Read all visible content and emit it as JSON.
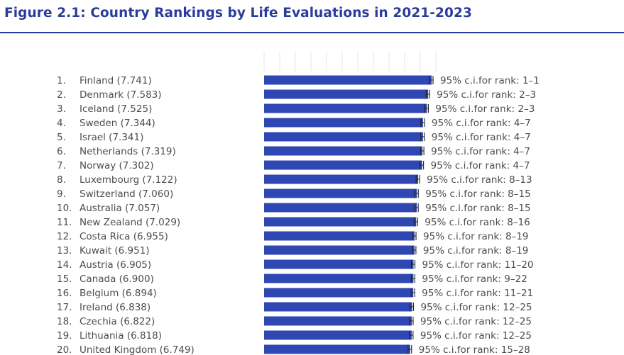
{
  "title": "Figure 2.1: Country Rankings by Life Evaluations in 2021-2023",
  "colors": {
    "title": "#2a3b9c",
    "rule": "#2a3b9c",
    "bar": "#2f47b3",
    "text": "#4d4d4d",
    "errorbar": "#222222",
    "gridline": "#e4e4e4"
  },
  "chart_data": {
    "type": "bar",
    "orientation": "horizontal",
    "title": "Figure 2.1: Country Rankings by Life Evaluations in 2021-2023",
    "xlabel": "",
    "ylabel": "",
    "xlim": [
      0,
      8
    ],
    "ci_prefix": "95% c.i.for rank: ",
    "rows": [
      {
        "rank": "1.",
        "country": "Finland",
        "score": 7.741,
        "label": "Finland (7.741)",
        "ci": "1–1"
      },
      {
        "rank": "2.",
        "country": "Denmark",
        "score": 7.583,
        "label": "Denmark (7.583)",
        "ci": "2–3"
      },
      {
        "rank": "3.",
        "country": "Iceland",
        "score": 7.525,
        "label": "Iceland (7.525)",
        "ci": "2–3"
      },
      {
        "rank": "4.",
        "country": "Sweden",
        "score": 7.344,
        "label": "Sweden (7.344)",
        "ci": "4–7"
      },
      {
        "rank": "5.",
        "country": "Israel",
        "score": 7.341,
        "label": "Israel (7.341)",
        "ci": "4–7"
      },
      {
        "rank": "6.",
        "country": "Netherlands",
        "score": 7.319,
        "label": "Netherlands (7.319)",
        "ci": "4–7"
      },
      {
        "rank": "7.",
        "country": "Norway",
        "score": 7.302,
        "label": "Norway (7.302)",
        "ci": "4–7"
      },
      {
        "rank": "8.",
        "country": "Luxembourg",
        "score": 7.122,
        "label": "Luxembourg (7.122)",
        "ci": "8–13"
      },
      {
        "rank": "9.",
        "country": "Switzerland",
        "score": 7.06,
        "label": "Switzerland (7.060)",
        "ci": "8–15"
      },
      {
        "rank": "10.",
        "country": "Australia",
        "score": 7.057,
        "label": "Australia (7.057)",
        "ci": "8–15"
      },
      {
        "rank": "11.",
        "country": "New Zealand",
        "score": 7.029,
        "label": "New Zealand (7.029)",
        "ci": "8–16"
      },
      {
        "rank": "12.",
        "country": "Costa Rica",
        "score": 6.955,
        "label": "Costa Rica (6.955)",
        "ci": "8–19"
      },
      {
        "rank": "13.",
        "country": "Kuwait",
        "score": 6.951,
        "label": "Kuwait (6.951)",
        "ci": "8–19"
      },
      {
        "rank": "14.",
        "country": "Austria",
        "score": 6.905,
        "label": "Austria (6.905)",
        "ci": "11–20"
      },
      {
        "rank": "15.",
        "country": "Canada",
        "score": 6.9,
        "label": "Canada (6.900)",
        "ci": "9–22"
      },
      {
        "rank": "16.",
        "country": "Belgium",
        "score": 6.894,
        "label": "Belgium (6.894)",
        "ci": "11–21"
      },
      {
        "rank": "17.",
        "country": "Ireland",
        "score": 6.838,
        "label": "Ireland (6.838)",
        "ci": "12–25"
      },
      {
        "rank": "18.",
        "country": "Czechia",
        "score": 6.822,
        "label": "Czechia (6.822)",
        "ci": "12–25"
      },
      {
        "rank": "19.",
        "country": "Lithuania",
        "score": 6.818,
        "label": "Lithuania (6.818)",
        "ci": "12–25"
      },
      {
        "rank": "20.",
        "country": "United Kingdom",
        "score": 6.749,
        "label": "United Kingdom (6.749)",
        "ci": "15–28"
      }
    ]
  }
}
